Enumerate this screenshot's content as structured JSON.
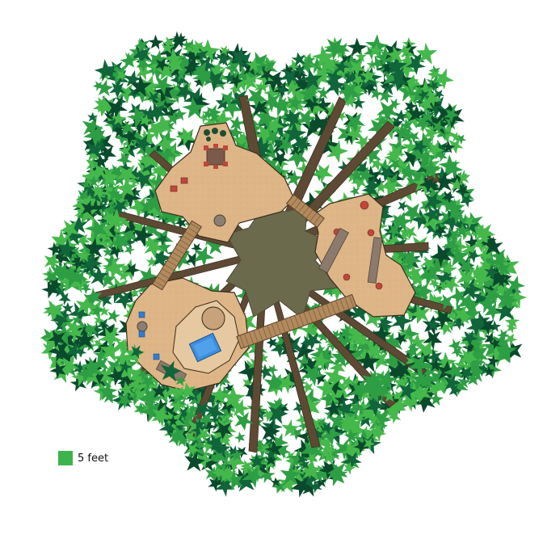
{
  "scale_legend": {
    "label": "5 feet",
    "swatch_color": "#3cb44b"
  },
  "colors": {
    "leaf_light": "#45b84c",
    "leaf_mid": "#2e9e44",
    "leaf_dark": "#10653a",
    "leaf_darkest": "#0a4a2c",
    "trunk": "#6b6a4c",
    "branch": "#5e4a34",
    "deck": "#ddb587",
    "deck_edge": "#3a2c1e",
    "bridge": "#b28a5e",
    "bench": "#8c7a6c",
    "stool": "#c0463c",
    "blue_item": "#2f7fd0"
  },
  "icons": [
    "leaf-icon",
    "tree-trunk-icon",
    "bridge-icon",
    "bench-icon",
    "stool-icon",
    "pool-icon",
    "barrel-icon",
    "table-icon"
  ]
}
